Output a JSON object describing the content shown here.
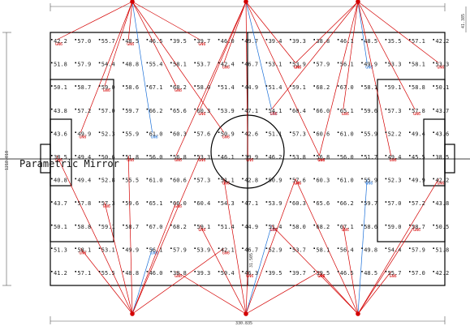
{
  "title": "Parametric Mirror",
  "dim_bottom": "330.835",
  "dim_left": "1218.010",
  "dim_right": "41.385",
  "dim_center": "31.505",
  "fixture_label": "GN6",
  "grid_rows": [
    [
      "42.2",
      "57.0",
      "55.7",
      "48.5",
      "46.5",
      "39.5",
      "39.7",
      "46.0",
      "49.7",
      "39.4",
      "39.3",
      "38.8",
      "46.1",
      "48.5",
      "35.5",
      "57.1",
      "42.2"
    ],
    [
      "51.8",
      "57.9",
      "54.4",
      "48.8",
      "55.4",
      "58.1",
      "53.7",
      "42.4",
      "46.7",
      "53.1",
      "53.9",
      "57.9",
      "56.1",
      "49.9",
      "53.3",
      "58.1",
      "53.3"
    ],
    [
      "50.1",
      "58.7",
      "59.0",
      "58.6",
      "67.1",
      "68.2",
      "58.0",
      "51.4",
      "44.9",
      "51.4",
      "59.1",
      "68.2",
      "67.0",
      "58.1",
      "59.1",
      "58.8",
      "50.1"
    ],
    [
      "43.8",
      "57.2",
      "57.0",
      "59.7",
      "66.2",
      "65.6",
      "60.3",
      "53.9",
      "47.1",
      "54.1",
      "60.4",
      "66.0",
      "65.1",
      "59.6",
      "57.3",
      "57.8",
      "43.7"
    ],
    [
      "43.6",
      "49.9",
      "52.3",
      "55.9",
      "61.0",
      "60.3",
      "57.6",
      "50.9",
      "42.6",
      "51.1",
      "57.3",
      "60.6",
      "61.0",
      "55.9",
      "52.2",
      "49.4",
      "43.6"
    ],
    [
      "38.5",
      "49.4",
      "50.6",
      "51.8",
      "56.0",
      "56.8",
      "53.3",
      "46.1",
      "39.9",
      "46.2",
      "53.8",
      "56.8",
      "56.0",
      "51.7",
      "49.4",
      "45.5",
      "38.5"
    ],
    [
      "40.8",
      "49.4",
      "52.8",
      "55.5",
      "61.0",
      "60.6",
      "57.3",
      "51.1",
      "42.8",
      "50.9",
      "57.6",
      "60.3",
      "61.0",
      "55.9",
      "52.3",
      "49.9",
      "42.2"
    ],
    [
      "43.7",
      "57.8",
      "57.3",
      "59.6",
      "65.1",
      "66.0",
      "60.4",
      "54.3",
      "47.1",
      "53.9",
      "60.3",
      "65.6",
      "66.2",
      "59.7",
      "57.0",
      "57.2",
      "43.8"
    ],
    [
      "50.1",
      "58.8",
      "59.1",
      "58.7",
      "67.0",
      "68.2",
      "59.1",
      "51.4",
      "44.9",
      "51.4",
      "58.0",
      "68.2",
      "67.1",
      "58.6",
      "59.0",
      "58.7",
      "50.5"
    ],
    [
      "51.3",
      "58.1",
      "53.1",
      "49.9",
      "56.1",
      "57.9",
      "53.9",
      "42.1",
      "46.7",
      "52.9",
      "53.7",
      "58.1",
      "56.4",
      "49.8",
      "54.4",
      "57.9",
      "51.8"
    ],
    [
      "41.2",
      "57.1",
      "55.5",
      "48.8",
      "46.0",
      "38.8",
      "39.3",
      "50.4",
      "46.3",
      "39.5",
      "39.7",
      "39.5",
      "46.5",
      "48.5",
      "55.7",
      "57.0",
      "42.2"
    ]
  ]
}
